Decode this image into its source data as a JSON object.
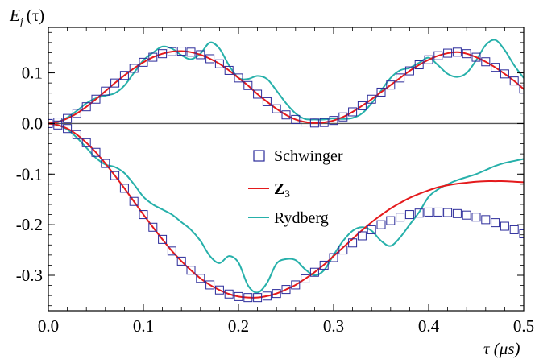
{
  "chart_data": {
    "type": "line",
    "ylabel_main": "E",
    "ylabel_sub": "j",
    "ylabel_arg": "(τ)",
    "xlabel": "τ (μs)",
    "xlim": [
      0.0,
      0.5
    ],
    "ylim": [
      -0.37,
      0.19
    ],
    "xticks": [
      0.0,
      0.1,
      0.2,
      0.3,
      0.4,
      0.5
    ],
    "xtick_labels": [
      "0.0",
      "0.1",
      "0.2",
      "0.3",
      "0.4",
      "0.5"
    ],
    "yticks": [
      0.1,
      0.0,
      -0.1,
      -0.2,
      -0.3
    ],
    "ytick_labels": [
      "0.1",
      "0.0",
      "-0.1",
      "-0.2",
      "-0.3"
    ],
    "zero_line": true,
    "legend_position": "center",
    "legend": [
      {
        "label": "Schwinger",
        "marker": "square",
        "color": "#2a2a9a"
      },
      {
        "label_main": "Z",
        "label_sub": "3",
        "marker": "line",
        "color": "#e41a1c"
      },
      {
        "label": "Rydberg",
        "marker": "line",
        "color": "#26b0aa"
      }
    ],
    "series": [
      {
        "name": "Schwinger",
        "kind": "upper",
        "marker": "square",
        "color": "#2a2a9a",
        "x": [
          0.0,
          0.01,
          0.02,
          0.03,
          0.04,
          0.05,
          0.06,
          0.07,
          0.08,
          0.09,
          0.1,
          0.11,
          0.12,
          0.13,
          0.14,
          0.15,
          0.16,
          0.17,
          0.18,
          0.19,
          0.2,
          0.21,
          0.22,
          0.23,
          0.24,
          0.25,
          0.26,
          0.27,
          0.28,
          0.29,
          0.3,
          0.31,
          0.32,
          0.33,
          0.34,
          0.35,
          0.36,
          0.37,
          0.38,
          0.39,
          0.4,
          0.41,
          0.42,
          0.43,
          0.44,
          0.45,
          0.46,
          0.47,
          0.48,
          0.49,
          0.5
        ],
        "y": [
          0.0,
          0.003,
          0.01,
          0.02,
          0.033,
          0.048,
          0.064,
          0.08,
          0.095,
          0.109,
          0.121,
          0.131,
          0.138,
          0.142,
          0.143,
          0.141,
          0.136,
          0.128,
          0.118,
          0.105,
          0.09,
          0.075,
          0.058,
          0.043,
          0.029,
          0.017,
          0.008,
          0.003,
          0.001,
          0.002,
          0.006,
          0.013,
          0.023,
          0.035,
          0.048,
          0.062,
          0.076,
          0.09,
          0.104,
          0.116,
          0.126,
          0.134,
          0.139,
          0.141,
          0.138,
          0.131,
          0.122,
          0.111,
          0.098,
          0.084,
          0.068
        ]
      },
      {
        "name": "Schwinger",
        "kind": "lower",
        "marker": "square",
        "color": "#2a2a9a",
        "x": [
          0.0,
          0.01,
          0.02,
          0.03,
          0.04,
          0.05,
          0.06,
          0.07,
          0.08,
          0.09,
          0.1,
          0.11,
          0.12,
          0.13,
          0.14,
          0.15,
          0.16,
          0.17,
          0.18,
          0.19,
          0.2,
          0.21,
          0.22,
          0.23,
          0.24,
          0.25,
          0.26,
          0.27,
          0.28,
          0.29,
          0.3,
          0.31,
          0.32,
          0.33,
          0.34,
          0.35,
          0.36,
          0.37,
          0.38,
          0.39,
          0.4,
          0.41,
          0.42,
          0.43,
          0.44,
          0.45,
          0.46,
          0.47,
          0.48,
          0.49,
          0.5
        ],
        "y": [
          0.0,
          -0.003,
          -0.01,
          -0.022,
          -0.038,
          -0.057,
          -0.079,
          -0.103,
          -0.128,
          -0.154,
          -0.18,
          -0.205,
          -0.229,
          -0.252,
          -0.272,
          -0.29,
          -0.306,
          -0.319,
          -0.329,
          -0.337,
          -0.342,
          -0.344,
          -0.344,
          -0.341,
          -0.336,
          -0.328,
          -0.319,
          -0.307,
          -0.294,
          -0.28,
          -0.265,
          -0.25,
          -0.236,
          -0.222,
          -0.21,
          -0.2,
          -0.192,
          -0.185,
          -0.18,
          -0.177,
          -0.175,
          -0.175,
          -0.176,
          -0.178,
          -0.181,
          -0.185,
          -0.19,
          -0.196,
          -0.203,
          -0.21,
          -0.218
        ]
      },
      {
        "name": "Z3",
        "kind": "upper",
        "marker": "line",
        "color": "#e41a1c",
        "x": [
          0.0,
          0.01,
          0.02,
          0.03,
          0.04,
          0.05,
          0.06,
          0.07,
          0.08,
          0.09,
          0.1,
          0.11,
          0.12,
          0.13,
          0.14,
          0.15,
          0.16,
          0.17,
          0.18,
          0.19,
          0.2,
          0.21,
          0.22,
          0.23,
          0.24,
          0.25,
          0.26,
          0.27,
          0.28,
          0.29,
          0.3,
          0.31,
          0.32,
          0.33,
          0.34,
          0.35,
          0.36,
          0.37,
          0.38,
          0.39,
          0.4,
          0.41,
          0.42,
          0.43,
          0.44,
          0.45,
          0.46,
          0.47,
          0.48,
          0.49,
          0.5
        ],
        "y": [
          0.0,
          0.003,
          0.01,
          0.02,
          0.033,
          0.048,
          0.064,
          0.08,
          0.095,
          0.109,
          0.121,
          0.131,
          0.138,
          0.142,
          0.143,
          0.141,
          0.136,
          0.128,
          0.118,
          0.105,
          0.09,
          0.075,
          0.058,
          0.043,
          0.029,
          0.017,
          0.008,
          0.003,
          0.001,
          0.002,
          0.006,
          0.013,
          0.023,
          0.035,
          0.048,
          0.062,
          0.076,
          0.09,
          0.104,
          0.116,
          0.126,
          0.134,
          0.139,
          0.141,
          0.138,
          0.131,
          0.122,
          0.111,
          0.098,
          0.084,
          0.068
        ]
      },
      {
        "name": "Z3",
        "kind": "lower",
        "marker": "line",
        "color": "#e41a1c",
        "x": [
          0.0,
          0.01,
          0.02,
          0.03,
          0.04,
          0.05,
          0.06,
          0.07,
          0.08,
          0.09,
          0.1,
          0.11,
          0.12,
          0.13,
          0.14,
          0.15,
          0.16,
          0.17,
          0.18,
          0.19,
          0.2,
          0.21,
          0.22,
          0.23,
          0.24,
          0.25,
          0.26,
          0.27,
          0.28,
          0.29,
          0.3,
          0.31,
          0.32,
          0.33,
          0.34,
          0.35,
          0.36,
          0.37,
          0.38,
          0.39,
          0.4,
          0.41,
          0.42,
          0.43,
          0.44,
          0.45,
          0.46,
          0.47,
          0.48,
          0.49,
          0.5
        ],
        "y": [
          0.0,
          -0.003,
          -0.01,
          -0.022,
          -0.038,
          -0.057,
          -0.079,
          -0.103,
          -0.128,
          -0.154,
          -0.18,
          -0.205,
          -0.229,
          -0.252,
          -0.272,
          -0.29,
          -0.306,
          -0.319,
          -0.329,
          -0.337,
          -0.342,
          -0.344,
          -0.344,
          -0.341,
          -0.336,
          -0.328,
          -0.319,
          -0.307,
          -0.294,
          -0.279,
          -0.262,
          -0.245,
          -0.228,
          -0.211,
          -0.195,
          -0.181,
          -0.168,
          -0.157,
          -0.147,
          -0.139,
          -0.132,
          -0.126,
          -0.122,
          -0.119,
          -0.117,
          -0.115,
          -0.114,
          -0.114,
          -0.114,
          -0.115,
          -0.116
        ]
      },
      {
        "name": "Rydberg",
        "kind": "upper",
        "marker": "line",
        "color": "#26b0aa",
        "x": [
          0.0,
          0.01,
          0.02,
          0.03,
          0.04,
          0.05,
          0.06,
          0.07,
          0.08,
          0.09,
          0.1,
          0.11,
          0.12,
          0.13,
          0.14,
          0.15,
          0.16,
          0.17,
          0.18,
          0.19,
          0.2,
          0.21,
          0.22,
          0.23,
          0.24,
          0.25,
          0.26,
          0.27,
          0.28,
          0.29,
          0.3,
          0.31,
          0.32,
          0.33,
          0.34,
          0.35,
          0.36,
          0.37,
          0.38,
          0.39,
          0.4,
          0.41,
          0.42,
          0.43,
          0.44,
          0.45,
          0.46,
          0.47,
          0.48,
          0.49,
          0.5
        ],
        "y": [
          0.0,
          0.003,
          0.012,
          0.025,
          0.04,
          0.05,
          0.055,
          0.06,
          0.075,
          0.1,
          0.125,
          0.14,
          0.152,
          0.148,
          0.135,
          0.127,
          0.138,
          0.16,
          0.148,
          0.115,
          0.09,
          0.088,
          0.094,
          0.088,
          0.065,
          0.04,
          0.02,
          0.009,
          0.008,
          0.008,
          0.01,
          0.009,
          0.011,
          0.02,
          0.04,
          0.065,
          0.09,
          0.105,
          0.11,
          0.12,
          0.13,
          0.115,
          0.098,
          0.092,
          0.1,
          0.125,
          0.155,
          0.165,
          0.145,
          0.115,
          0.09
        ]
      },
      {
        "name": "Rydberg",
        "kind": "lower",
        "marker": "line",
        "color": "#26b0aa",
        "x": [
          0.0,
          0.01,
          0.02,
          0.03,
          0.04,
          0.05,
          0.06,
          0.07,
          0.08,
          0.09,
          0.1,
          0.11,
          0.12,
          0.13,
          0.14,
          0.15,
          0.16,
          0.17,
          0.18,
          0.19,
          0.2,
          0.21,
          0.22,
          0.23,
          0.24,
          0.25,
          0.26,
          0.27,
          0.28,
          0.29,
          0.3,
          0.31,
          0.32,
          0.33,
          0.34,
          0.35,
          0.36,
          0.37,
          0.38,
          0.39,
          0.4,
          0.41,
          0.42,
          0.43,
          0.44,
          0.45,
          0.46,
          0.47,
          0.48,
          0.49,
          0.5
        ],
        "y": [
          0.0,
          -0.003,
          -0.012,
          -0.028,
          -0.048,
          -0.068,
          -0.081,
          -0.086,
          -0.098,
          -0.12,
          -0.145,
          -0.16,
          -0.17,
          -0.18,
          -0.195,
          -0.21,
          -0.232,
          -0.262,
          -0.276,
          -0.262,
          -0.275,
          -0.32,
          -0.334,
          -0.315,
          -0.277,
          -0.268,
          -0.27,
          -0.288,
          -0.3,
          -0.29,
          -0.26,
          -0.232,
          -0.212,
          -0.205,
          -0.212,
          -0.232,
          -0.242,
          -0.225,
          -0.2,
          -0.175,
          -0.145,
          -0.13,
          -0.12,
          -0.112,
          -0.106,
          -0.1,
          -0.092,
          -0.084,
          -0.078,
          -0.074,
          -0.07
        ]
      }
    ]
  }
}
